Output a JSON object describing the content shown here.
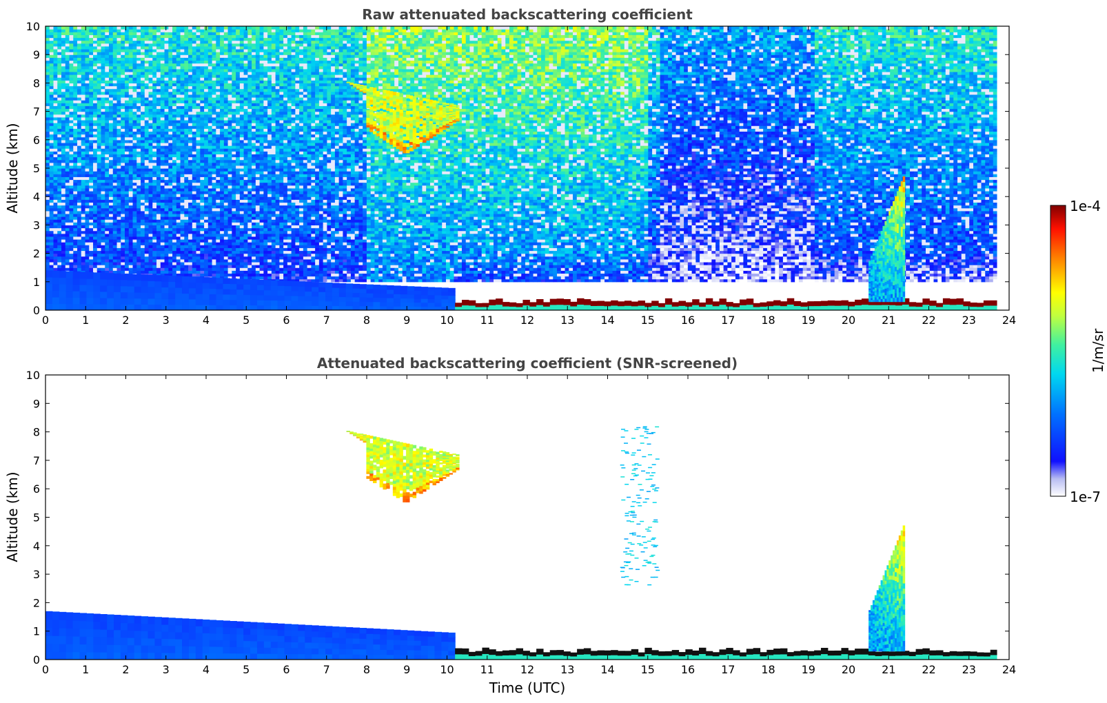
{
  "chart_data": [
    {
      "type": "heatmap",
      "title": "Raw attenuated backscattering coefficient",
      "xlabel": "",
      "ylabel": "Altitude (km)",
      "xlim": [
        0,
        24
      ],
      "ylim": [
        0,
        10
      ],
      "xticks": [
        "0",
        "1",
        "2",
        "3",
        "4",
        "5",
        "6",
        "7",
        "8",
        "9",
        "10",
        "11",
        "12",
        "13",
        "14",
        "15",
        "16",
        "17",
        "18",
        "19",
        "20",
        "21",
        "22",
        "23",
        "24"
      ],
      "yticks": [
        "0",
        "1",
        "2",
        "3",
        "4",
        "5",
        "6",
        "7",
        "8",
        "9",
        "10"
      ],
      "data_end_time": 23.7,
      "features": [
        {
          "kind": "boundary-layer-aerosol",
          "t_start": 0,
          "t_end": 10.2,
          "z_top": 1.4,
          "level": 0.2
        },
        {
          "kind": "surface-layer",
          "t_start": 10.2,
          "t_end": 23.7,
          "z_top": 0.35,
          "level": 1.0
        },
        {
          "kind": "cirrus-cloud",
          "t_start": 7.0,
          "t_end": 10.3,
          "z_bottom": 5.5,
          "z_top": 8.2,
          "level": 0.65
        },
        {
          "kind": "plume",
          "t_start": 20.5,
          "t_end": 21.4,
          "z_bottom": 0.3,
          "z_top": 4.8,
          "level": 0.7
        },
        {
          "kind": "noisy-background",
          "t_start": 0,
          "t_end": 23.7,
          "z_bottom": 1.0,
          "z_top": 10,
          "level": 0.4
        }
      ]
    },
    {
      "type": "heatmap",
      "title": "Attenuated backscattering coefficient (SNR-screened)",
      "xlabel": "Time (UTC)",
      "ylabel": "Altitude (km)",
      "xlim": [
        0,
        24
      ],
      "ylim": [
        0,
        10
      ],
      "xticks": [
        "0",
        "1",
        "2",
        "3",
        "4",
        "5",
        "6",
        "7",
        "8",
        "9",
        "10",
        "11",
        "12",
        "13",
        "14",
        "15",
        "16",
        "17",
        "18",
        "19",
        "20",
        "21",
        "22",
        "23",
        "24"
      ],
      "yticks": [
        "0",
        "1",
        "2",
        "3",
        "4",
        "5",
        "6",
        "7",
        "8",
        "9",
        "10"
      ],
      "data_end_time": 23.7,
      "features": [
        {
          "kind": "boundary-layer-aerosol",
          "t_start": 0,
          "t_end": 10.2,
          "z_top": 1.7,
          "level": 0.2
        },
        {
          "kind": "surface-layer",
          "t_start": 10.2,
          "t_end": 23.7,
          "z_top": 0.35,
          "level": 1.0
        },
        {
          "kind": "cirrus-cloud",
          "t_start": 7.0,
          "t_end": 10.3,
          "z_bottom": 5.5,
          "z_top": 8.2,
          "level": 0.65
        },
        {
          "kind": "plume",
          "t_start": 20.5,
          "t_end": 21.4,
          "z_bottom": 0.3,
          "z_top": 4.8,
          "level": 0.7
        },
        {
          "kind": "sparse-cloud",
          "t_start": 14.3,
          "t_end": 15.2,
          "z_bottom": 2.6,
          "z_top": 8.2,
          "level": 0.4
        }
      ]
    }
  ],
  "colorbar": {
    "label": "1/m/sr",
    "min_label": "1e-7",
    "max_label": "1e-4",
    "colormap": "jet",
    "colors": [
      "#ffffff",
      "#d9dcf5",
      "#0000ff",
      "#0080ff",
      "#00e0e0",
      "#80ff80",
      "#ffff00",
      "#ff8000",
      "#ff0000",
      "#800000"
    ]
  }
}
